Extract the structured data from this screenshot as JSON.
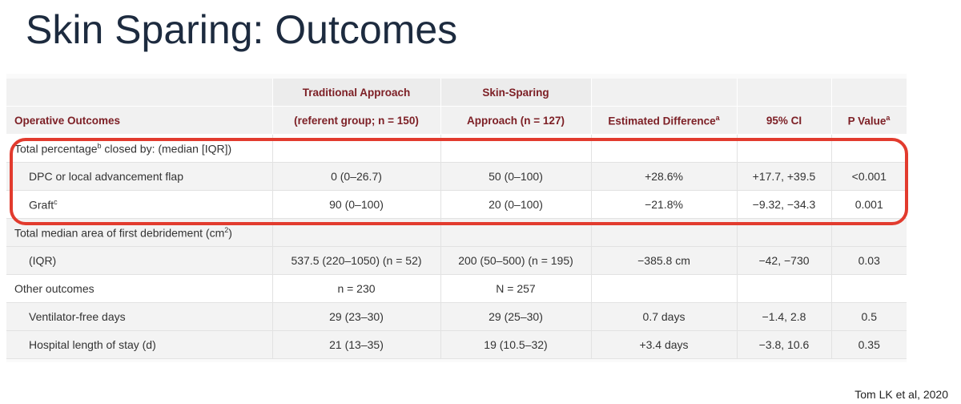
{
  "title": "Skin Sparing: Outcomes",
  "citation": "Tom LK et al, 2020",
  "table": {
    "header": [
      [
        null,
        "Traditional Approach",
        "Skin-Sparing",
        null,
        null,
        null
      ],
      [
        "Operative Outcomes",
        "(referent group; n = 150)",
        "Approach (n = 127)",
        {
          "text": "Estimated Difference",
          "sup": "a"
        },
        "95% CI",
        {
          "text": "P Value",
          "sup": "a"
        }
      ]
    ],
    "rows": [
      {
        "indent": false,
        "shaded": false,
        "cells": [
          {
            "text": "Total percentage",
            "sup": "b",
            "rest": " closed by: (median [IQR])"
          },
          null,
          null,
          null,
          null,
          null
        ]
      },
      {
        "indent": true,
        "shaded": true,
        "cells": [
          "DPC or local advancement flap",
          "0 (0–26.7)",
          "50 (0–100)",
          "+28.6%",
          "+17.7, +39.5",
          "<0.001"
        ]
      },
      {
        "indent": true,
        "shaded": false,
        "cells": [
          {
            "text": "Graft",
            "sup": "c"
          },
          "90 (0–100)",
          "20 (0–100)",
          "−21.8%",
          "−9.32, −34.3",
          "0.001"
        ]
      },
      {
        "indent": false,
        "shaded": true,
        "cells": [
          {
            "text": "Total median area of first debridement (cm",
            "sup": "2",
            "rest": ")"
          },
          null,
          null,
          null,
          null,
          null
        ]
      },
      {
        "indent": true,
        "shaded": true,
        "cells": [
          "(IQR)",
          "537.5 (220–1050) (n = 52)",
          "200 (50–500) (n = 195)",
          "−385.8 cm",
          "−42, −730",
          "0.03"
        ]
      },
      {
        "indent": false,
        "shaded": false,
        "cells": [
          "Other outcomes",
          "n = 230",
          "N = 257",
          null,
          null,
          null
        ]
      },
      {
        "indent": true,
        "shaded": true,
        "cells": [
          "Ventilator-free days",
          "29 (23–30)",
          "29 (25–30)",
          "0.7 days",
          "−1.4, 2.8",
          "0.5"
        ]
      },
      {
        "indent": true,
        "shaded": true,
        "cells": [
          "Hospital length of stay (d)",
          "21 (13–35)",
          "19 (10.5–32)",
          "+3.4 days",
          "−3.8, 10.6",
          "0.35"
        ]
      }
    ]
  }
}
